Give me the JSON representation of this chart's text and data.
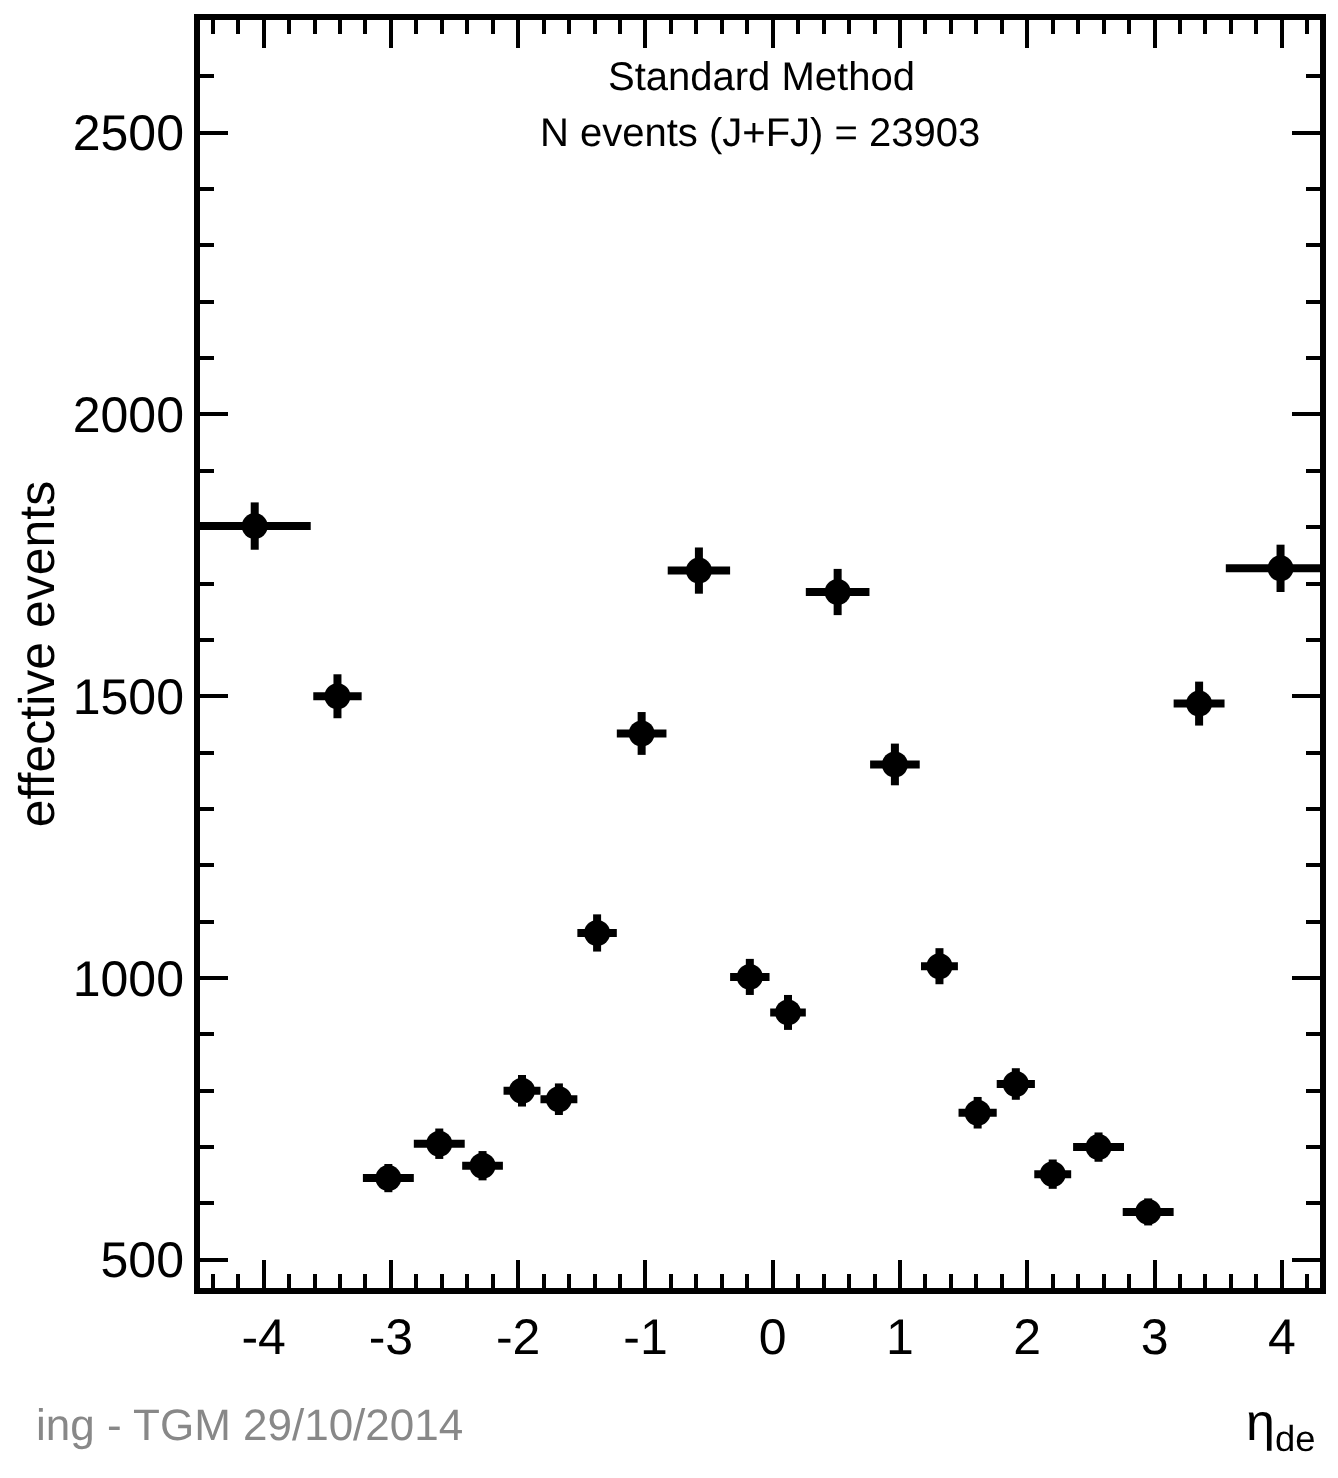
{
  "chart_data": {
    "type": "scatter",
    "xlabel": "η$_{de}$",
    "ylabel": "effective events",
    "annotations": [
      "Standard Method",
      "N events (J+FJ) = 23903",
      "ing - TGM 29/10/2014"
    ],
    "x": [
      -4.07,
      -3.42,
      -3.02,
      -2.62,
      -2.28,
      -1.97,
      -1.68,
      -1.38,
      -1.03,
      -0.58,
      -0.18,
      0.12,
      0.51,
      0.96,
      1.31,
      1.61,
      1.91,
      2.2,
      2.56,
      2.95,
      3.35,
      3.99
    ],
    "values": [
      1802,
      1500,
      645,
      706,
      667,
      800,
      785,
      1080,
      1434,
      1723,
      1002,
      939,
      1685,
      1379,
      1021,
      761,
      812,
      652,
      700,
      585,
      1487,
      1727
    ],
    "errors": [
      42,
      39,
      25,
      27,
      26,
      28,
      28,
      33,
      38,
      41,
      32,
      31,
      41,
      37,
      32,
      28,
      28,
      26,
      26,
      24,
      39,
      42
    ],
    "xerrors": [
      0.44,
      0.19,
      0.2,
      0.2,
      0.16,
      0.145,
      0.145,
      0.155,
      0.195,
      0.245,
      0.155,
      0.14,
      0.25,
      0.195,
      0.145,
      0.15,
      0.15,
      0.145,
      0.2,
      0.2,
      0.2,
      0.43
    ],
    "color": "#000000",
    "marker": "circle",
    "xlim": [
      -4.5,
      4.3
    ],
    "xticks": [
      -4,
      -3,
      -2,
      -1,
      0,
      1,
      2,
      3,
      4
    ],
    "ylim": [
      450,
      2700
    ],
    "yticks": [
      500,
      1000,
      1500,
      2000,
      2500
    ]
  }
}
